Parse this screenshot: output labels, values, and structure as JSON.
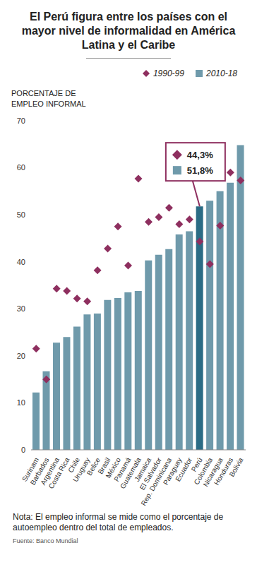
{
  "chart_data": {
    "type": "bar",
    "title": "El Perú figura entre los países con el mayor nivel de informalidad en América Latina y el Caribe",
    "y_label": "PORCENTAJE DE EMPLEO INFORMAL",
    "categories": [
      "Surinam",
      "Barbados",
      "Argentina",
      "Costa Rica",
      "Chile",
      "Uruguay",
      "Belice",
      "Brasil",
      "México",
      "Panamá",
      "Guatemala",
      "Jamaica",
      "El Salvador",
      "Rep. Dominicana",
      "Paraguay",
      "Ecuador",
      "Perú",
      "Colombia",
      "Nicaragua",
      "Honduras",
      "Bolivia"
    ],
    "series": [
      {
        "name": "1990-99",
        "type": "scatter",
        "marker": "diamond",
        "color": "#8e2f5f",
        "values": [
          21.5,
          15.0,
          34.3,
          33.8,
          32.2,
          31.6,
          38.2,
          42.8,
          47.5,
          39.2,
          57.7,
          48.5,
          49.5,
          51.5,
          48.0,
          49.0,
          44.3,
          39.5,
          47.7,
          59.0,
          57.3
        ]
      },
      {
        "name": "2010-18",
        "type": "bar",
        "marker": "square",
        "color": "#6f9aab",
        "colors": [
          "#6f9aab",
          "#6f9aab",
          "#6f9aab",
          "#6f9aab",
          "#6f9aab",
          "#6f9aab",
          "#6f9aab",
          "#6f9aab",
          "#6f9aab",
          "#6f9aab",
          "#6f9aab",
          "#6f9aab",
          "#6f9aab",
          "#6f9aab",
          "#6f9aab",
          "#6f9aab",
          "#2b6c85",
          "#6f9aab",
          "#6f9aab",
          "#6f9aab",
          "#6f9aab"
        ],
        "values": [
          12.2,
          16.7,
          22.8,
          24.0,
          26.2,
          28.8,
          29.0,
          31.9,
          32.3,
          33.5,
          33.8,
          40.3,
          41.5,
          42.7,
          45.8,
          46.5,
          51.8,
          53.0,
          55.0,
          56.8,
          64.8
        ]
      }
    ],
    "ylim": [
      0,
      70
    ],
    "yticks": [
      0,
      10,
      20,
      30,
      40,
      50,
      60,
      70
    ],
    "grid": false,
    "annotation": {
      "category": "Perú",
      "items": [
        {
          "series": "1990-99",
          "value": 44.3,
          "label": "44,3%"
        },
        {
          "series": "2010-18",
          "value": 51.8,
          "label": "51,8%"
        }
      ]
    },
    "note": "Nota: El empleo informal se mide como el porcentaje de autoempleo dentro del total de empleados.",
    "source": "Fuente: Banco Mundial"
  }
}
